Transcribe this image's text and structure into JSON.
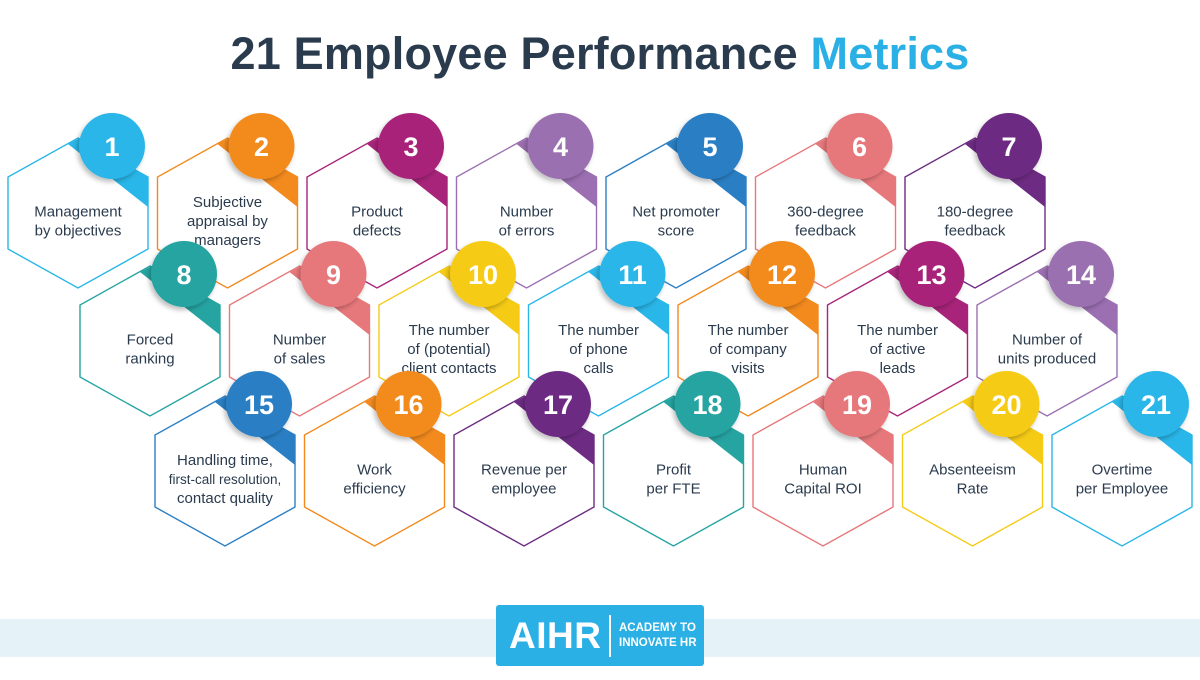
{
  "title": {
    "main": "21 Employee Performance",
    "accent": "Metrics"
  },
  "colors": {
    "title": "#2b3b4e",
    "accent": "#2bb0e6",
    "label_text": "#2b3b4e",
    "band": "#e5f3f9",
    "logo_bg": "#2bb0e6"
  },
  "metrics": [
    {
      "number": "1",
      "lines": [
        "Management",
        "by objectives"
      ],
      "color": "#29b6e8"
    },
    {
      "number": "2",
      "lines": [
        "Subjective",
        "appraisal by",
        "managers"
      ],
      "color": "#f28a1e"
    },
    {
      "number": "3",
      "lines": [
        "Product",
        "defects"
      ],
      "color": "#a8247a"
    },
    {
      "number": "4",
      "lines": [
        "Number",
        "of errors"
      ],
      "color": "#9b6fb1"
    },
    {
      "number": "5",
      "lines": [
        "Net promoter",
        "score"
      ],
      "color": "#2a7fc4"
    },
    {
      "number": "6",
      "lines": [
        "360-degree",
        "feedback"
      ],
      "color": "#e6787b"
    },
    {
      "number": "7",
      "lines": [
        "180-degree",
        "feedback"
      ],
      "color": "#6d2b83"
    },
    {
      "number": "8",
      "lines": [
        "Forced",
        "ranking"
      ],
      "color": "#25a4a2"
    },
    {
      "number": "9",
      "lines": [
        "Number",
        "of sales"
      ],
      "color": "#e6787b"
    },
    {
      "number": "10",
      "lines": [
        "The number",
        "of (potential)",
        "client contacts"
      ],
      "color": "#f6cb16"
    },
    {
      "number": "11",
      "lines": [
        "The number",
        "of phone",
        "calls"
      ],
      "color": "#29b6e8"
    },
    {
      "number": "12",
      "lines": [
        "The number",
        "of company",
        "visits"
      ],
      "color": "#f28a1e"
    },
    {
      "number": "13",
      "lines": [
        "The number",
        "of active",
        "leads"
      ],
      "color": "#a8247a"
    },
    {
      "number": "14",
      "lines": [
        "Number of",
        "units produced"
      ],
      "color": "#9b6fb1"
    },
    {
      "number": "15",
      "lines": [
        "Handling time,",
        "first-call resolution,",
        "contact quality"
      ],
      "color": "#2a7fc4"
    },
    {
      "number": "16",
      "lines": [
        "Work",
        "efficiency"
      ],
      "color": "#f28a1e"
    },
    {
      "number": "17",
      "lines": [
        "Revenue per",
        "employee"
      ],
      "color": "#6d2b83"
    },
    {
      "number": "18",
      "lines": [
        "Profit",
        "per FTE"
      ],
      "color": "#25a4a2"
    },
    {
      "number": "19",
      "lines": [
        "Human",
        "Capital ROI"
      ],
      "color": "#e6787b"
    },
    {
      "number": "20",
      "lines": [
        "Absenteeism",
        "Rate"
      ],
      "color": "#f6cb16"
    },
    {
      "number": "21",
      "lines": [
        "Overtime",
        "per Employee"
      ],
      "color": "#29b6e8"
    }
  ],
  "footer": {
    "logo_mark": "AIHR",
    "logo_tag_line1": "ACADEMY TO",
    "logo_tag_line2": "INNOVATE HR"
  }
}
